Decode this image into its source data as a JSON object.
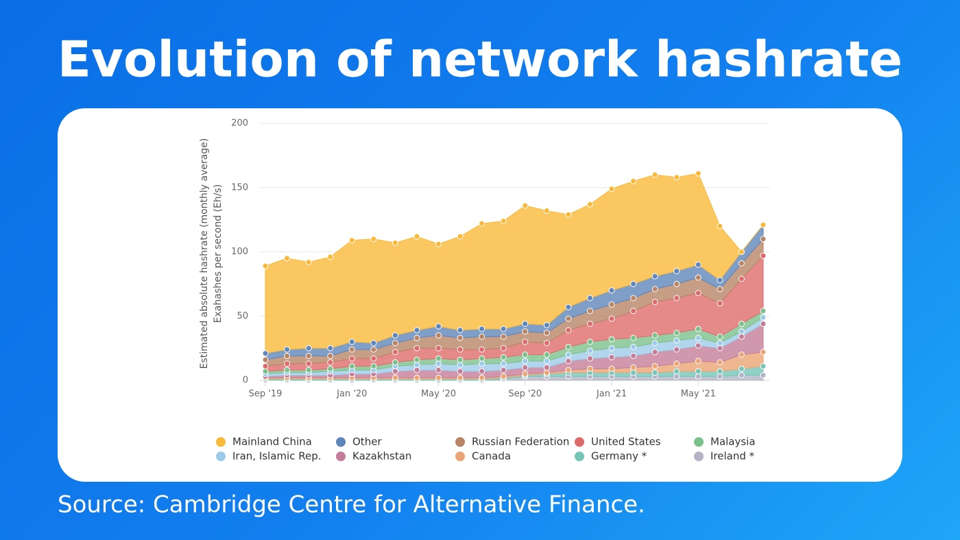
{
  "header": {
    "title": "Evolution of network hashrate"
  },
  "footer": {
    "source": "Source: Cambridge Centre for Alternative Finance."
  },
  "chart_data": {
    "type": "stacked-area",
    "y_label": [
      "Estimated absolute hashrate (monthly average)",
      "Exahashes per second (Eh/s)"
    ],
    "categories": [
      "Sep '19",
      null,
      null,
      null,
      "Jan '20",
      null,
      null,
      null,
      "May '20",
      null,
      null,
      null,
      "Sep '20",
      null,
      null,
      null,
      "Jan '21",
      null,
      null,
      null,
      "May '21",
      null,
      null,
      null
    ],
    "ylim": [
      0,
      200
    ],
    "yticks": [
      0,
      50,
      100,
      150,
      200
    ],
    "grid": true,
    "legend": "bottom",
    "series": [
      {
        "name": "Mainland China",
        "color": "#f9b93a",
        "values": [
          68,
          71,
          67,
          71,
          79,
          81,
          72,
          73,
          64,
          73,
          82,
          84,
          92,
          89,
          72,
          73,
          79,
          80,
          79,
          73,
          71,
          42,
          0,
          0
        ]
      },
      {
        "name": "Other",
        "color": "#5f86ba",
        "values": [
          5,
          5,
          6,
          6,
          6,
          5,
          6,
          6,
          7,
          6,
          6,
          6,
          6,
          6,
          9,
          10,
          11,
          11,
          10,
          10,
          10,
          7,
          9,
          11
        ]
      },
      {
        "name": "Russian Federation",
        "color": "#b88566",
        "values": [
          5,
          6,
          6,
          5,
          7,
          7,
          7,
          8,
          10,
          9,
          10,
          9,
          8,
          8,
          9,
          10,
          11,
          10,
          10,
          11,
          12,
          11,
          12,
          13
        ]
      },
      {
        "name": "United States",
        "color": "#de6b6b",
        "values": [
          4,
          5,
          5,
          5,
          6,
          6,
          8,
          9,
          8,
          8,
          7,
          7,
          10,
          9,
          13,
          14,
          16,
          21,
          26,
          27,
          28,
          26,
          35,
          43
        ]
      },
      {
        "name": "Malaysia",
        "color": "#7cc08b",
        "values": [
          2,
          2,
          2,
          2,
          3,
          3,
          3,
          4,
          4,
          4,
          4,
          5,
          5,
          5,
          6,
          7,
          7,
          7,
          6,
          6,
          7,
          5,
          6,
          5
        ]
      },
      {
        "name": "Iran, Islamic Rep.",
        "color": "#9ccbe9",
        "values": [
          2,
          2,
          2,
          3,
          3,
          3,
          4,
          4,
          5,
          5,
          6,
          5,
          5,
          5,
          5,
          6,
          7,
          7,
          7,
          7,
          6,
          4,
          4,
          5
        ]
      },
      {
        "name": "Kazakhstan",
        "color": "#c47d99",
        "values": [
          1,
          2,
          2,
          2,
          3,
          3,
          5,
          6,
          6,
          5,
          5,
          5,
          5,
          4,
          7,
          8,
          9,
          9,
          11,
          11,
          12,
          11,
          14,
          22
        ]
      },
      {
        "name": "Canada",
        "color": "#eba574",
        "values": [
          1,
          1,
          1,
          1,
          1,
          1,
          1,
          1,
          1,
          1,
          1,
          1,
          1,
          1,
          2,
          3,
          3,
          4,
          5,
          6,
          8,
          7,
          11,
          11
        ]
      },
      {
        "name": "Germany *",
        "color": "#76c5b6",
        "values": [
          1,
          1,
          1,
          1,
          1,
          1,
          1,
          1,
          1,
          1,
          1,
          1,
          1,
          2,
          3,
          3,
          3,
          3,
          3,
          4,
          4,
          4,
          5,
          7
        ]
      },
      {
        "name": "Ireland *",
        "color": "#b3b5c6",
        "values": [
          0,
          0,
          0,
          0,
          0,
          0,
          0,
          0,
          0,
          0,
          0,
          1,
          3,
          3,
          3,
          3,
          3,
          3,
          3,
          3,
          3,
          3,
          4,
          4
        ]
      }
    ]
  }
}
